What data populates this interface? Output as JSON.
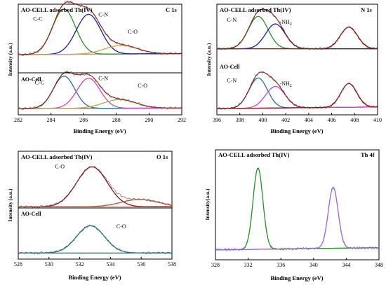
{
  "chart_data": [
    {
      "id": "c1s",
      "type": "line",
      "element": "C 1s",
      "xlabel": "Binding Energy (eV)",
      "ylabel": "Intensity (a.u.)",
      "xlim": [
        282,
        292
      ],
      "xticks": [
        "282",
        "284",
        "286",
        "288",
        "290",
        "292"
      ],
      "ylim": [
        0,
        1
      ],
      "stacked_panels": [
        {
          "name": "top",
          "title": "AO-CELL adsorbed Th(IV)",
          "y_range": [
            0.52,
            1.0
          ],
          "series": [
            {
              "name": "C-C",
              "color": "#2e8b2e",
              "center": 284.8,
              "height": 0.42,
              "width": 0.7
            },
            {
              "name": "C-N",
              "color": "#1f1f8f",
              "center": 286.3,
              "height": 0.37,
              "width": 0.75
            },
            {
              "name": "C-O",
              "color": "#c6a248",
              "center": 288.3,
              "height": 0.08,
              "width": 1.0
            },
            {
              "name": "fit",
              "color": "#8b1a1a",
              "type": "envelope"
            },
            {
              "name": "background",
              "color": "#d4893a",
              "type": "baseline",
              "values": [
                0.545,
                0.555
              ]
            }
          ],
          "labels": [
            {
              "text": "C-C",
              "x": 283.2,
              "y": 0.86
            },
            {
              "text": "C-N",
              "x": 287.2,
              "y": 0.9
            },
            {
              "text": "C-O",
              "x": 289.0,
              "y": 0.74
            }
          ]
        },
        {
          "name": "bottom",
          "title": "AO-Cell",
          "y_range": [
            0.0,
            0.47
          ],
          "series": [
            {
              "name": "C-C",
              "color": "#2b6f8f",
              "center": 284.8,
              "height": 0.3,
              "width": 0.65
            },
            {
              "name": "C-N",
              "color": "#c445c4",
              "center": 286.3,
              "height": 0.28,
              "width": 0.7
            },
            {
              "name": "C-O",
              "color": "#b5a35a",
              "center": 288.2,
              "height": 0.08,
              "width": 1.0
            },
            {
              "name": "fit",
              "color": "#8b1a1a",
              "type": "envelope"
            },
            {
              "name": "background",
              "color": "#7a5c2e",
              "type": "baseline",
              "values": [
                0.045,
                0.05
              ]
            }
          ],
          "labels": [
            {
              "text": "C-C",
              "x": 283.3,
              "y": 0.27
            },
            {
              "text": "C-N",
              "x": 287.2,
              "y": 0.31
            },
            {
              "text": "C-O",
              "x": 289.6,
              "y": 0.24
            }
          ]
        }
      ]
    },
    {
      "id": "n1s",
      "type": "line",
      "element": "N 1s",
      "xlabel": "Binding Energy (eV)",
      "ylabel": "Intensity (a.u.)",
      "xlim": [
        396,
        410
      ],
      "xticks": [
        "396",
        "398",
        "400",
        "402",
        "404",
        "406",
        "408",
        "410"
      ],
      "ylim": [
        0,
        1
      ],
      "stacked_panels": [
        {
          "name": "top",
          "title": "AO-CELL adsorbed Th(IV)",
          "y_range": [
            0.55,
            1.0
          ],
          "series": [
            {
              "name": "C-N",
              "color": "#2e8b2e",
              "center": 399.6,
              "height": 0.3,
              "width": 0.85
            },
            {
              "name": "-NH2",
              "color": "#1f1f8f",
              "center": 401.1,
              "height": 0.23,
              "width": 0.85
            },
            {
              "name": "satellite",
              "color": "#8b1a1a",
              "center": 407.5,
              "height": 0.2,
              "width": 0.75
            },
            {
              "name": "fit",
              "color": "#8b1a1a",
              "type": "envelope"
            },
            {
              "name": "background",
              "color": "#d4893a",
              "type": "baseline",
              "values": [
                0.6,
                0.6
              ]
            }
          ],
          "labels": [
            {
              "text": "C-N",
              "x": 397.3,
              "y": 0.85
            },
            {
              "text": "-NH2",
              "x": 402.0,
              "y": 0.83
            }
          ]
        },
        {
          "name": "bottom",
          "title": "AO-Cell",
          "y_range": [
            0.0,
            0.45
          ],
          "series": [
            {
              "name": "C-N",
              "color": "#2b6f8f",
              "center": 399.6,
              "height": 0.28,
              "width": 0.8
            },
            {
              "name": "-NH2",
              "color": "#c445c4",
              "center": 401.1,
              "height": 0.2,
              "width": 0.85
            },
            {
              "name": "satellite",
              "color": "#8b1a1a",
              "center": 407.5,
              "height": 0.22,
              "width": 0.7
            },
            {
              "name": "fit",
              "color": "#8b1a1a",
              "type": "envelope"
            },
            {
              "name": "background",
              "color": "#c445c4",
              "type": "baseline",
              "values": [
                0.045,
                0.06
              ]
            }
          ],
          "labels": [
            {
              "text": "C-N",
              "x": 397.3,
              "y": 0.29
            },
            {
              "text": "-NH2",
              "x": 402.0,
              "y": 0.26
            }
          ]
        }
      ]
    },
    {
      "id": "o1s",
      "type": "line",
      "element": "O 1s",
      "xlabel": "Binding Energy (eV)",
      "ylabel": "Intensity (a.u.)",
      "xlim": [
        528,
        538
      ],
      "xticks": [
        "528",
        "530",
        "532",
        "534",
        "536",
        "538"
      ],
      "ylim": [
        0,
        1
      ],
      "stacked_panels": [
        {
          "name": "top",
          "title": "AO-CELL adsorbed Th(IV)",
          "y_range": [
            0.45,
            1.0
          ],
          "series": [
            {
              "name": "C-O",
              "color": "#8b1a1a",
              "center": 532.8,
              "height": 0.38,
              "width": 1.0
            },
            {
              "name": "shoulder",
              "color": "#b5523a",
              "center": 535.9,
              "height": 0.07,
              "width": 1.2
            },
            {
              "name": "background",
              "color": "#d4893a",
              "type": "baseline",
              "values": [
                0.485,
                0.485
              ]
            }
          ],
          "labels": [
            {
              "text": "C-O",
              "x": 530.7,
              "y": 0.85
            }
          ]
        },
        {
          "name": "bottom",
          "title": "AO-Cell",
          "y_range": [
            0.0,
            0.45
          ],
          "series": [
            {
              "name": "C-O",
              "color": "#2b6f8f",
              "center": 532.7,
              "height": 0.26,
              "width": 0.9
            },
            {
              "name": "background",
              "color": "#1f3f8f",
              "type": "baseline",
              "values": [
                0.045,
                0.045
              ]
            }
          ],
          "labels": [
            {
              "text": "C-O",
              "x": 534.7,
              "y": 0.28
            }
          ]
        }
      ]
    },
    {
      "id": "th4f",
      "type": "line",
      "element": "Th 4f",
      "title": "AO-CELL adsorbed Th(IV)",
      "xlabel": "Binding Energy (eV)",
      "ylabel": "Intensity(a.u.)",
      "xlim": [
        328,
        348
      ],
      "xticks": [
        "328",
        "332",
        "336",
        "340",
        "344",
        "348"
      ],
      "ylim": [
        0,
        1
      ],
      "series": [
        {
          "name": "Th 4f7/2",
          "color": "#2e8b2e",
          "center": 333.2,
          "height": 0.76,
          "width": 0.6
        },
        {
          "name": "Th 4f5/2",
          "color": "#9966cc",
          "center": 342.4,
          "height": 0.57,
          "width": 0.6
        },
        {
          "name": "background",
          "color": "#9966cc",
          "type": "baseline",
          "values": [
            0.08,
            0.1
          ]
        }
      ]
    }
  ]
}
